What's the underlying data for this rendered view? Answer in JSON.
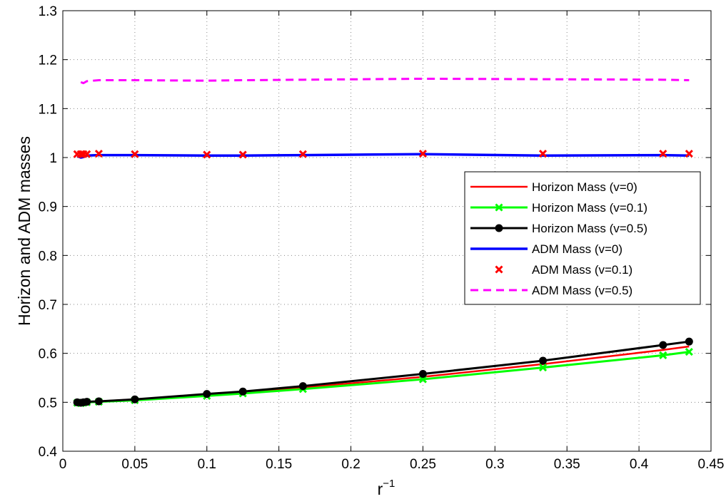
{
  "chart_data": {
    "type": "line",
    "xlabel": "r",
    "xlabel_sup": "−1",
    "ylabel": "Horizon and ADM masses",
    "xlim": [
      0,
      0.45
    ],
    "ylim": [
      0.4,
      1.3
    ],
    "grid": true,
    "legend_position": "right",
    "x_ticks": [
      {
        "value": 0,
        "label": "0"
      },
      {
        "value": 0.05,
        "label": "0.05"
      },
      {
        "value": 0.1,
        "label": "0.1"
      },
      {
        "value": 0.15,
        "label": "0.15"
      },
      {
        "value": 0.2,
        "label": "0.2"
      },
      {
        "value": 0.25,
        "label": "0.25"
      },
      {
        "value": 0.3,
        "label": "0.3"
      },
      {
        "value": 0.35,
        "label": "0.35"
      },
      {
        "value": 0.4,
        "label": "0.4"
      },
      {
        "value": 0.45,
        "label": "0.45"
      }
    ],
    "y_ticks": [
      {
        "value": 0.4,
        "label": "0.4"
      },
      {
        "value": 0.5,
        "label": "0.5"
      },
      {
        "value": 0.6,
        "label": "0.6"
      },
      {
        "value": 0.7,
        "label": "0.7"
      },
      {
        "value": 0.8,
        "label": "0.8"
      },
      {
        "value": 0.9,
        "label": "0.9"
      },
      {
        "value": 1.0,
        "label": "1"
      },
      {
        "value": 1.1,
        "label": "1.1"
      },
      {
        "value": 1.2,
        "label": "1.2"
      },
      {
        "value": 1.3,
        "label": "1.3"
      }
    ],
    "series": [
      {
        "name": "Horizon Mass (v=0)",
        "color": "#ff0000",
        "line": "solid",
        "width": 2.5,
        "marker": "none",
        "x": [
          0.01,
          0.0125,
          0.0143,
          0.0167,
          0.025,
          0.05,
          0.1,
          0.125,
          0.1667,
          0.25,
          0.3333,
          0.4167,
          0.4348
        ],
        "y": [
          0.5,
          0.499,
          0.5,
          0.501,
          0.502,
          0.506,
          0.516,
          0.521,
          0.53,
          0.552,
          0.578,
          0.607,
          0.614
        ]
      },
      {
        "name": "Horizon Mass (v=0.1)",
        "color": "#00ff00",
        "line": "solid",
        "width": 3,
        "marker": "x",
        "x": [
          0.01,
          0.0125,
          0.0143,
          0.0167,
          0.025,
          0.05,
          0.1,
          0.125,
          0.1667,
          0.25,
          0.3333,
          0.4167,
          0.4348
        ],
        "y": [
          0.499,
          0.498,
          0.499,
          0.5,
          0.501,
          0.504,
          0.513,
          0.518,
          0.527,
          0.547,
          0.571,
          0.596,
          0.603
        ]
      },
      {
        "name": "Horizon Mass (v=0.5)",
        "color": "#000000",
        "line": "solid",
        "width": 3,
        "marker": "dot",
        "x": [
          0.01,
          0.0125,
          0.0143,
          0.0167,
          0.025,
          0.05,
          0.1,
          0.125,
          0.1667,
          0.25,
          0.3333,
          0.4167,
          0.4348
        ],
        "y": [
          0.5,
          0.499,
          0.5,
          0.501,
          0.502,
          0.506,
          0.517,
          0.522,
          0.533,
          0.558,
          0.585,
          0.617,
          0.624
        ]
      },
      {
        "name": "ADM Mass (v=0)",
        "color": "#0000ff",
        "line": "solid",
        "width": 3.5,
        "marker": "none",
        "x": [
          0.01,
          0.0125,
          0.0143,
          0.0167,
          0.025,
          0.05,
          0.1,
          0.125,
          0.1667,
          0.25,
          0.3333,
          0.4167,
          0.4348
        ],
        "y": [
          1.003,
          1.0,
          1.001,
          1.004,
          1.005,
          1.005,
          1.004,
          1.004,
          1.005,
          1.007,
          1.004,
          1.005,
          1.004
        ]
      },
      {
        "name": "ADM Mass (v=0.1)",
        "color": "#ff0000",
        "line": "none",
        "width": 0,
        "marker": "x",
        "x": [
          0.01,
          0.0125,
          0.0143,
          0.0167,
          0.025,
          0.05,
          0.1,
          0.125,
          0.1667,
          0.25,
          0.3333,
          0.4167,
          0.4348
        ],
        "y": [
          1.007,
          1.007,
          1.007,
          1.007,
          1.008,
          1.007,
          1.006,
          1.006,
          1.007,
          1.008,
          1.008,
          1.008,
          1.008
        ]
      },
      {
        "name": "ADM Mass (v=0.5)",
        "color": "#ff00ff",
        "line": "dashed",
        "width": 3,
        "marker": "none",
        "x": [
          0.0125,
          0.0143,
          0.0167,
          0.025,
          0.05,
          0.1,
          0.125,
          0.1667,
          0.25,
          0.3333,
          0.4167,
          0.4348
        ],
        "y": [
          1.154,
          1.152,
          1.156,
          1.158,
          1.158,
          1.157,
          1.158,
          1.159,
          1.161,
          1.16,
          1.159,
          1.158
        ]
      }
    ]
  }
}
